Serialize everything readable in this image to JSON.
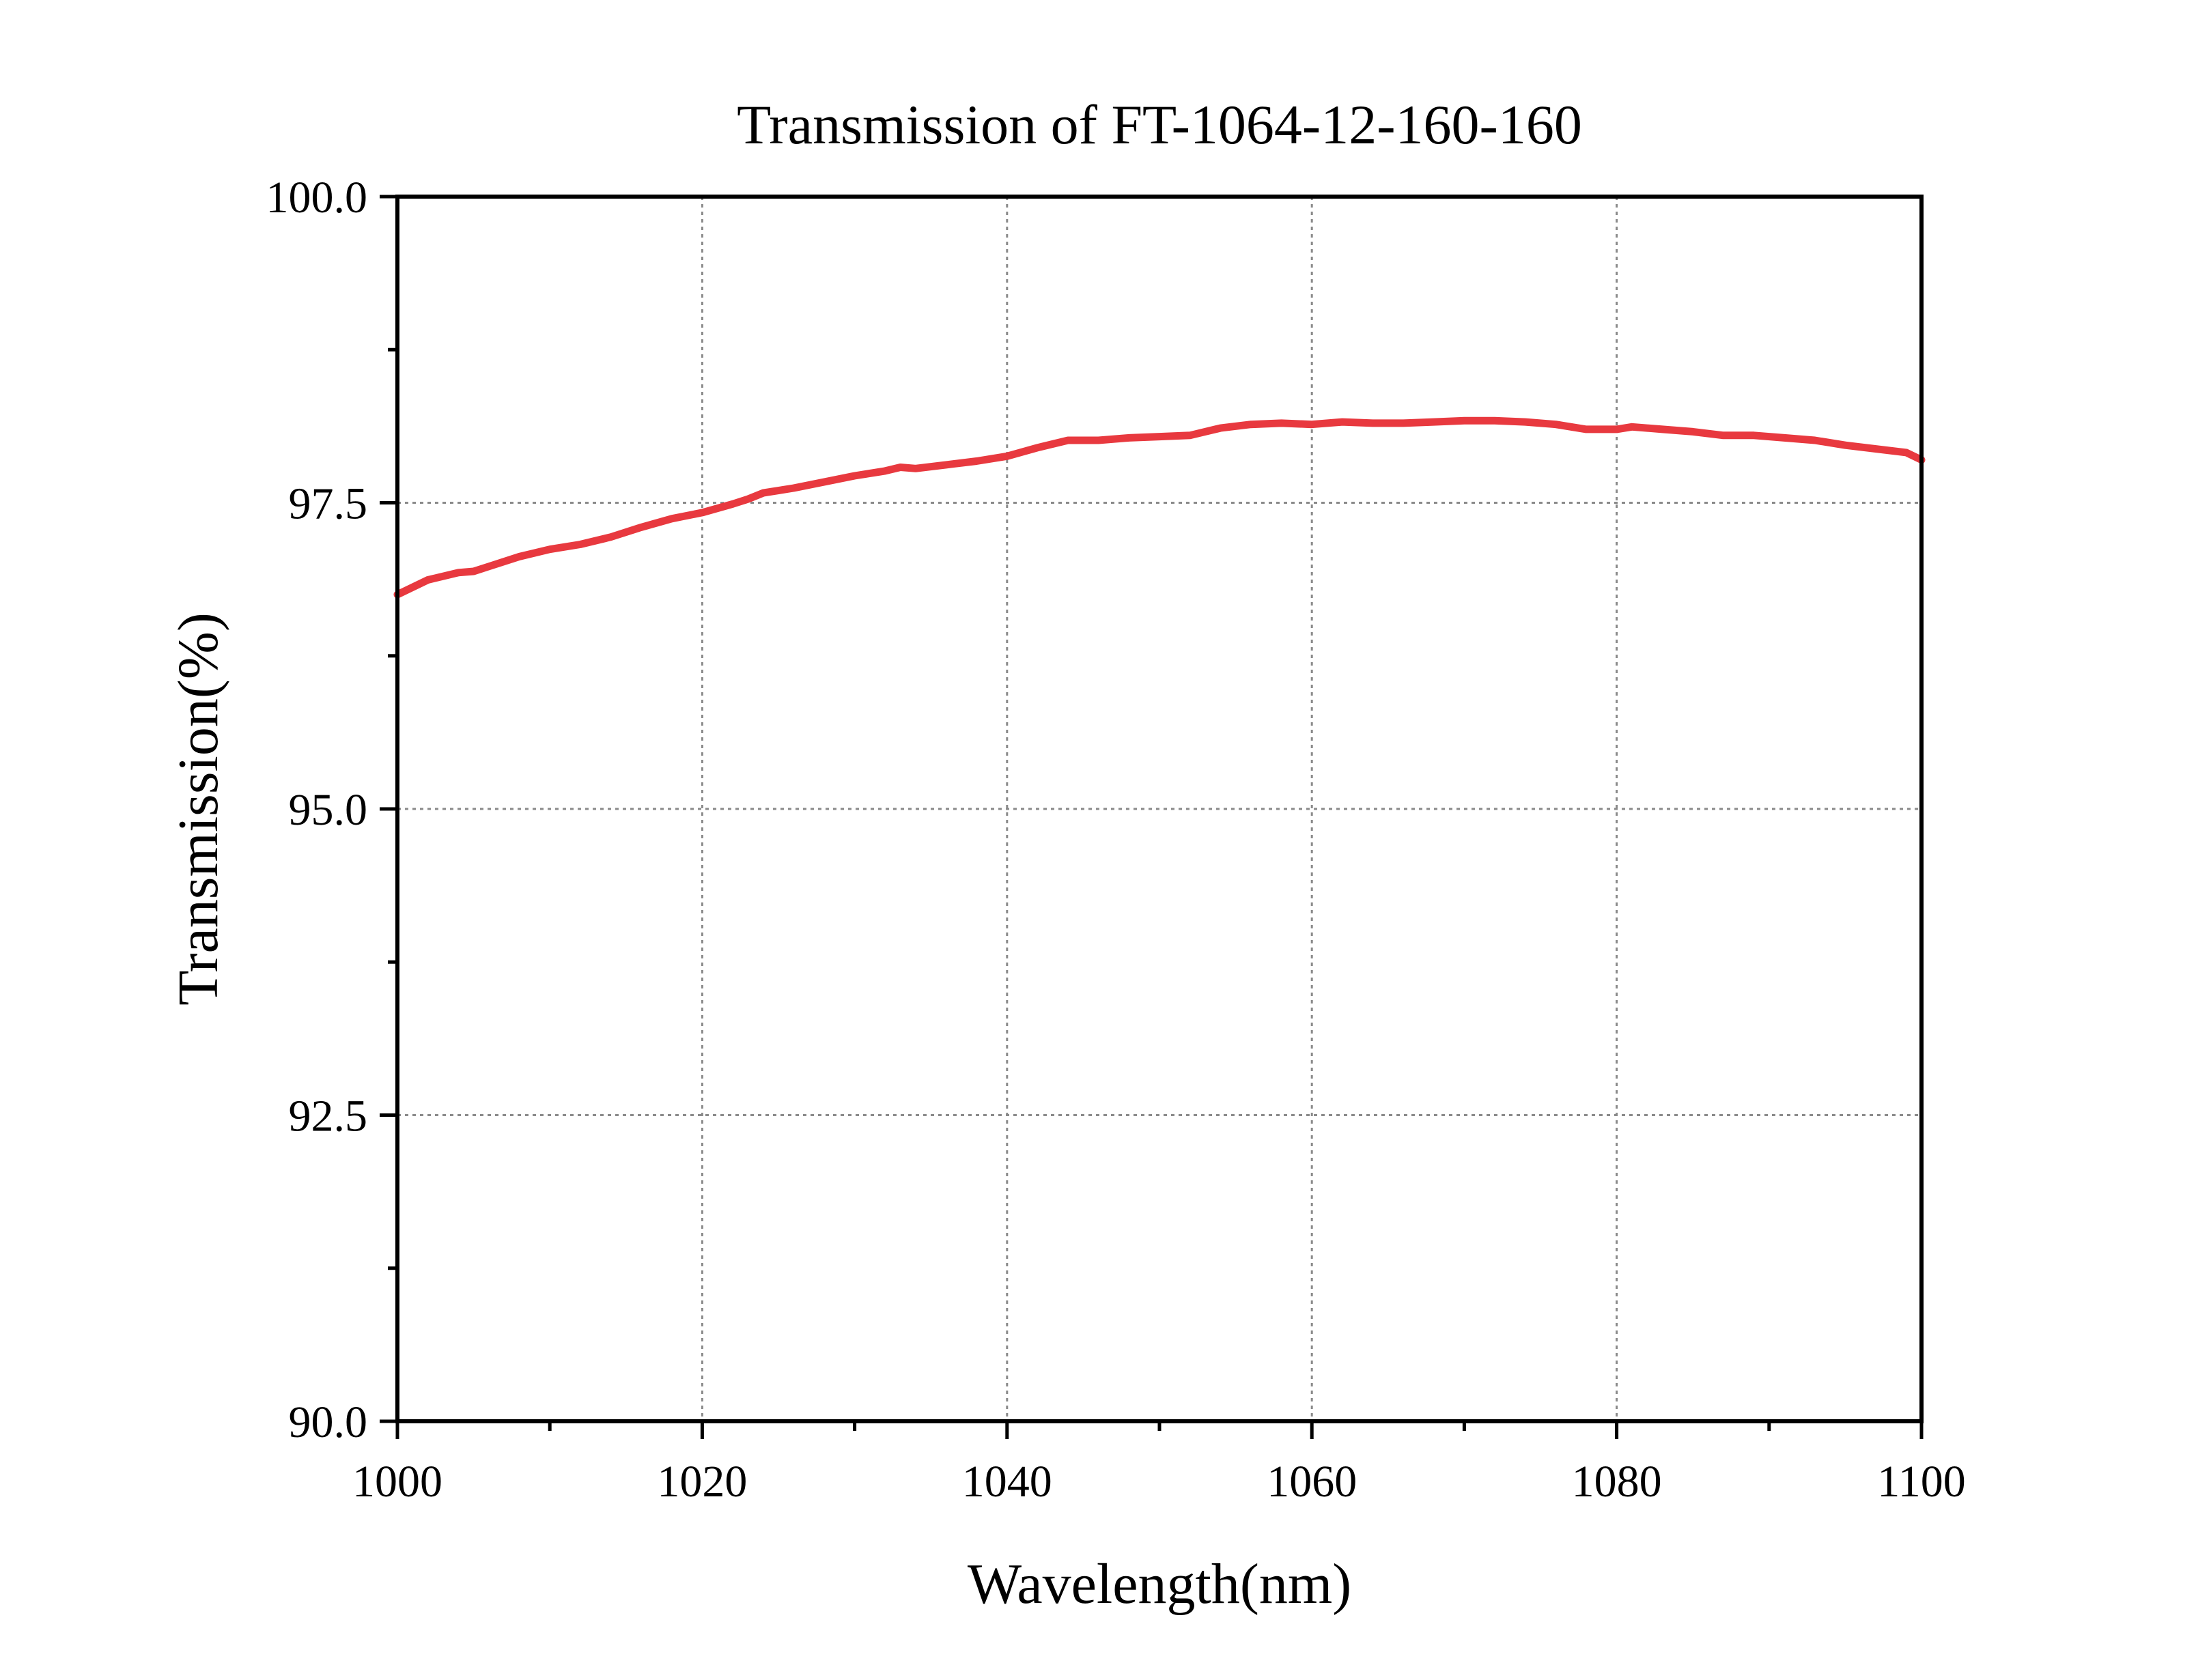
{
  "chart_data": {
    "type": "line",
    "title": "Transmission of FT-1064-12-160-160",
    "xlabel": "Wavelength(nm)",
    "ylabel": "Transmission(%)",
    "xlim": [
      1000,
      1100
    ],
    "ylim": [
      90.0,
      100.0
    ],
    "x_ticks": [
      1000,
      1020,
      1040,
      1060,
      1080,
      1100
    ],
    "x_tick_labels": [
      "1000",
      "1020",
      "1040",
      "1060",
      "1080",
      "1100"
    ],
    "y_ticks": [
      90.0,
      92.5,
      95.0,
      97.5,
      100.0
    ],
    "y_tick_labels": [
      "90.0",
      "92.5",
      "95.0",
      "97.5",
      "100.0"
    ],
    "x_minor_step": 10,
    "y_minor_step": 1.25,
    "grid": true,
    "series_color": "#e8393f",
    "series": [
      {
        "x": [
          1000,
          1002,
          1004,
          1005,
          1006,
          1008,
          1010,
          1012,
          1014,
          1016,
          1018,
          1020,
          1022,
          1023,
          1024,
          1026,
          1028,
          1030,
          1032,
          1033,
          1034,
          1036,
          1038,
          1040,
          1042,
          1044,
          1046,
          1048,
          1050,
          1052,
          1054,
          1056,
          1058,
          1060,
          1062,
          1064,
          1066,
          1068,
          1070,
          1072,
          1074,
          1076,
          1078,
          1080,
          1081,
          1083,
          1085,
          1087,
          1089,
          1091,
          1093,
          1095,
          1097,
          1099,
          1100
        ],
        "values": [
          96.75,
          96.87,
          96.93,
          96.94,
          96.98,
          97.06,
          97.12,
          97.16,
          97.22,
          97.3,
          97.37,
          97.42,
          97.49,
          97.53,
          97.58,
          97.62,
          97.67,
          97.72,
          97.76,
          97.79,
          97.78,
          97.81,
          97.84,
          97.88,
          97.95,
          98.01,
          98.01,
          98.03,
          98.04,
          98.05,
          98.11,
          98.14,
          98.15,
          98.14,
          98.16,
          98.15,
          98.15,
          98.16,
          98.17,
          98.17,
          98.16,
          98.14,
          98.1,
          98.1,
          98.12,
          98.1,
          98.08,
          98.05,
          98.05,
          98.03,
          98.01,
          97.97,
          97.94,
          97.91,
          97.85
        ]
      }
    ]
  }
}
